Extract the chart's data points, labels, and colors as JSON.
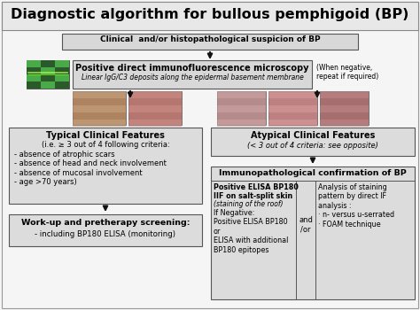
{
  "title": "Diagnostic algorithm for bullous pemphigoid (BP)",
  "bg_color": "#f5f5f5",
  "title_fill": "#e8e8e8",
  "box_fill": "#dcdcdc",
  "box_fill2": "#e8e8e8",
  "white": "#ffffff",
  "top_box": "Clinical  and/or histopathological suspicion of BP",
  "if_box_title": "Positive direct immunofluorescence microscopy",
  "if_box_sub": "Linear IgG/C3 deposits along the epidermal basement membrane",
  "when_neg": "(When negative,\nrepeat if required)",
  "typical_title": "Typical Clinical Features",
  "typical_sub": "(i.e. ≥ 3 out of 4 following criteria:",
  "typical_bullets": "- absence of atrophic scars\n- absence of head and neck involvement\n- absence of mucosal involvement\n- age >70 years)",
  "workup_line1": "Work-up and pretherapy screening:",
  "workup_line2": "- including BP180 ELISA (monitoring)",
  "atypical_title": "Atypical Clinical Features",
  "atypical_sub": "(< 3 out of 4 criteria: see opposite)",
  "immuno_title": "Immunopathological confirmation of BP",
  "elisa_bold": "Positive ELISA BP180\nIIF on salt-split skin",
  "elisa_italic": "(staining of the roof)",
  "elisa_rest": "If Negative:\nPositive ELISA BP180\nor\nELISA with additional\nBP180 epitopes",
  "and_or": "and\n/or",
  "analysis_text": "Analysis of staining\npattern by direct IF\nanalysis :\n· n- versus u-serrated\n· FOAM technique",
  "green_img_color": "#3a7a3a",
  "img1_color": "#b8956a",
  "img2_color": "#c08070",
  "img3_color": "#c09090",
  "img4_color": "#c89090",
  "img5_color": "#b07878"
}
